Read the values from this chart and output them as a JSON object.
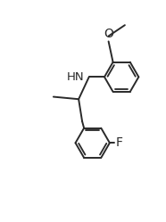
{
  "background": "#ffffff",
  "line_color": "#2a2a2a",
  "line_width": 1.4,
  "text_color": "#2a2a2a",
  "font_size": 8.5,
  "fig_width": 1.86,
  "fig_height": 2.49,
  "dpi": 100,
  "xlim": [
    -2.8,
    2.8
  ],
  "ylim": [
    -3.5,
    2.8
  ]
}
